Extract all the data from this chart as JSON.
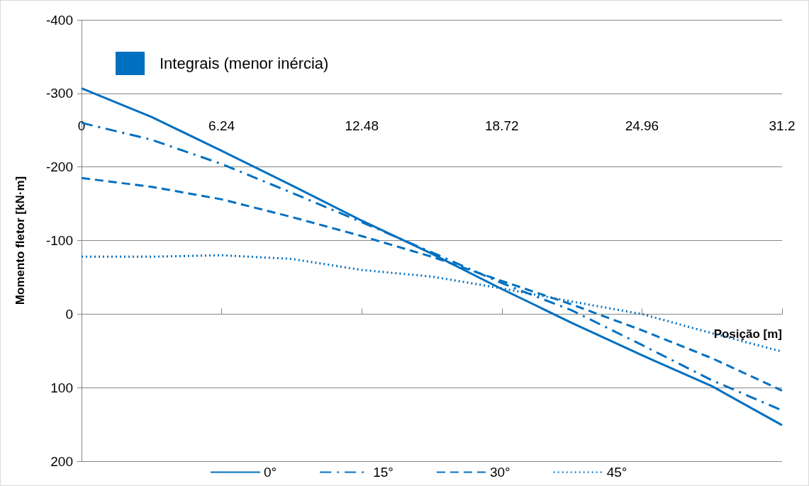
{
  "chart_data": {
    "type": "line",
    "xlabel": "Posição [m]",
    "ylabel": "Momento fletor [kN·m]",
    "annotations": [
      "Integrais (menor inércia)"
    ],
    "x": [
      0,
      3.12,
      6.24,
      9.36,
      12.48,
      15.6,
      18.72,
      21.84,
      24.96,
      28.08,
      31.2
    ],
    "series": [
      {
        "name": "0°",
        "color": "#0070c0",
        "line_style": "solid",
        "values": [
          -307,
          -268,
          -222,
          -175,
          -127,
          -82,
          -34,
          12,
          56,
          98,
          151
        ]
      },
      {
        "name": "15°",
        "color": "#0070c0",
        "line_style": "dashdot",
        "values": [
          -260,
          -237,
          -204,
          -165,
          -125,
          -84,
          -42,
          -5,
          42,
          90,
          131
        ]
      },
      {
        "name": "30°",
        "color": "#0070c0",
        "line_style": "dashed",
        "values": [
          -185,
          -173,
          -156,
          -132,
          -106,
          -78,
          -45,
          -13,
          22,
          60,
          104
        ]
      },
      {
        "name": "45°",
        "color": "#0070c0",
        "line_style": "dotted",
        "values": [
          -78,
          -78,
          -80,
          -75,
          -60,
          -51,
          -35,
          -17,
          0,
          26,
          51
        ]
      }
    ],
    "xlim": [
      0,
      31.2
    ],
    "xticks": [
      0,
      6.24,
      12.48,
      18.72,
      24.96,
      31.2
    ],
    "ylim": [
      200,
      -400
    ],
    "yticks": [
      -400,
      -300,
      -200,
      -100,
      0,
      100,
      200
    ],
    "grid": "y",
    "legend": "bottom",
    "marker": "none"
  }
}
